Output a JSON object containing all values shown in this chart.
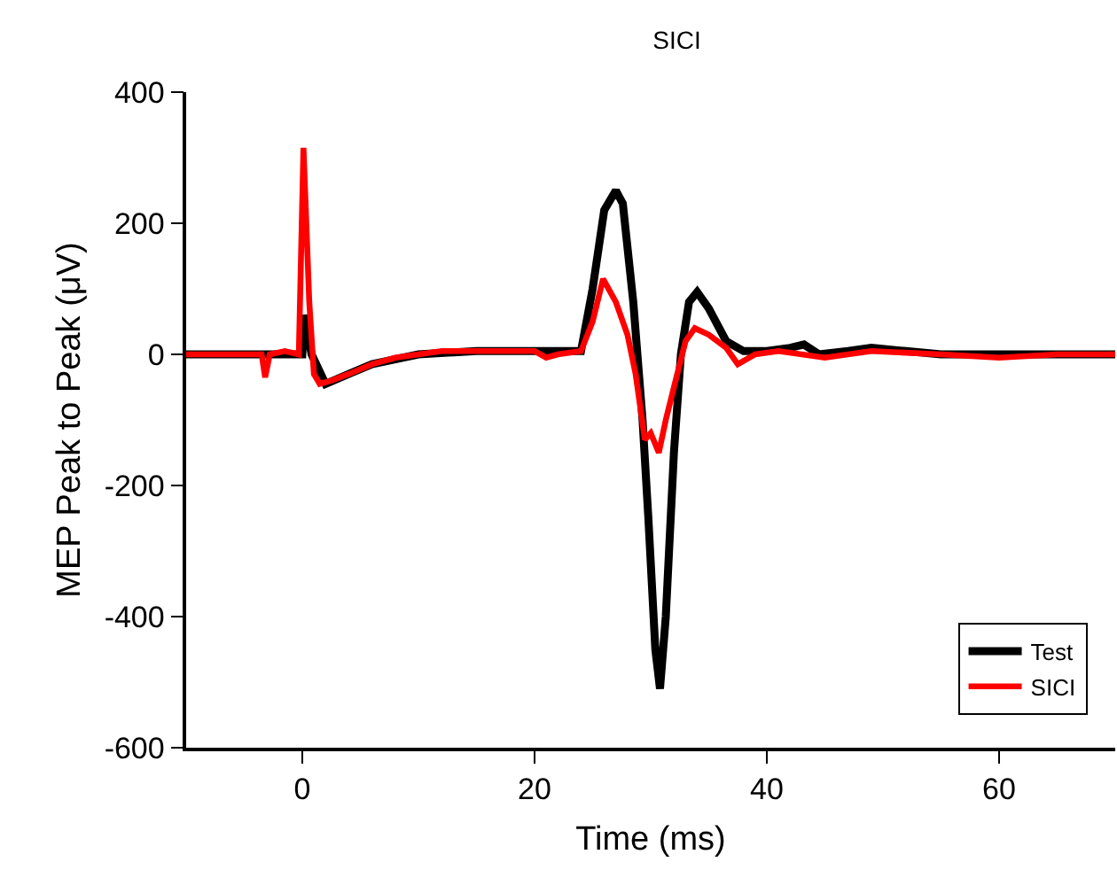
{
  "chart_data": {
    "type": "line",
    "title": "SICI",
    "xlabel": "Time (ms)",
    "ylabel": "MEP Peak to Peak (μV)",
    "xlim": [
      -10,
      70
    ],
    "xticks": [
      0,
      20,
      40,
      60
    ],
    "ylim": [
      -600,
      400
    ],
    "yticks": [
      -600,
      -400,
      -200,
      0,
      200,
      400
    ],
    "grid": false,
    "legend": "bottom right",
    "marker": "none",
    "line_style": "solid",
    "series": [
      {
        "name": "Test",
        "color": "#000000",
        "x": [
          -10,
          -5,
          -1,
          0,
          0.2,
          0.8,
          2,
          4,
          6,
          10,
          15,
          20,
          24,
          25,
          26,
          27,
          27.6,
          28.5,
          29.3,
          29.8,
          30.4,
          30.8,
          31.3,
          32,
          32.6,
          33.3,
          34,
          35,
          36.5,
          38,
          40,
          42,
          43.2,
          44.5,
          47,
          49,
          52,
          55,
          60,
          65,
          70
        ],
        "values": [
          0,
          0,
          0,
          0,
          60,
          0,
          -45,
          -30,
          -15,
          0,
          5,
          5,
          5,
          100,
          220,
          250,
          230,
          80,
          -100,
          -250,
          -450,
          -510,
          -400,
          -150,
          0,
          80,
          95,
          70,
          20,
          5,
          5,
          10,
          15,
          0,
          5,
          10,
          5,
          0,
          0,
          0,
          0
        ]
      },
      {
        "name": "SICI",
        "color": "#ff0000",
        "x": [
          -10,
          -5,
          -3.5,
          -3.2,
          -2.8,
          -1.5,
          -0.3,
          0.1,
          0.6,
          1,
          1.5,
          2.5,
          4,
          6,
          8,
          10,
          12,
          16,
          20,
          21,
          22,
          24,
          25,
          25.9,
          27,
          28,
          28.7,
          29.5,
          30,
          30.7,
          31.3,
          32,
          33,
          33.8,
          35,
          36.5,
          37.5,
          39,
          41,
          45,
          49,
          55,
          60,
          65,
          70
        ],
        "values": [
          0,
          0,
          0,
          -35,
          0,
          5,
          0,
          315,
          80,
          -30,
          -45,
          -40,
          -30,
          -15,
          -5,
          0,
          5,
          5,
          5,
          -5,
          0,
          5,
          50,
          115,
          80,
          30,
          -30,
          -130,
          -120,
          -150,
          -100,
          -50,
          20,
          40,
          30,
          10,
          -15,
          0,
          5,
          -5,
          5,
          0,
          -5,
          0,
          0
        ]
      }
    ]
  }
}
